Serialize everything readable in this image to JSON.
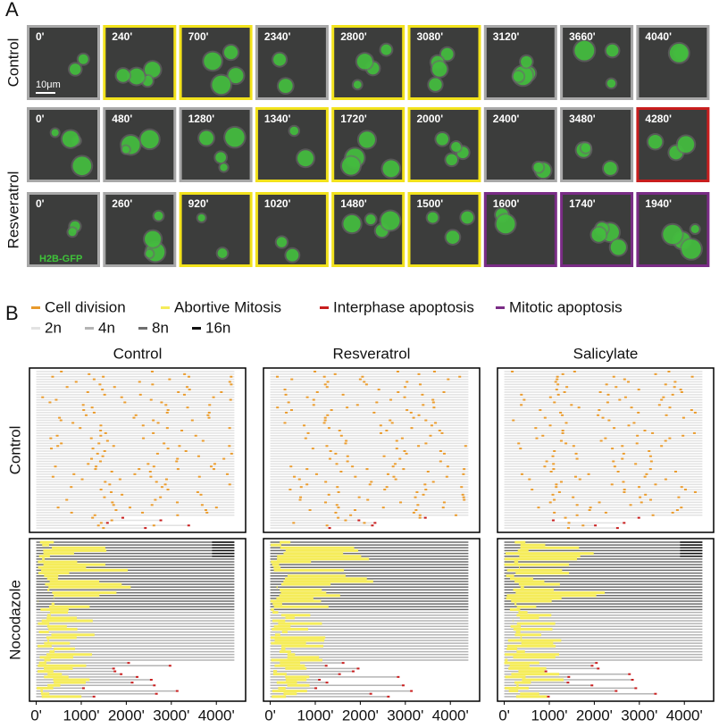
{
  "panel_a": {
    "label": "A",
    "row_labels": [
      "Control",
      "Resveratrol"
    ],
    "scale_bar": "10μm",
    "marker": "H2B-GFP",
    "rows": [
      [
        {
          "time": "0'",
          "border": "#a8a8a8"
        },
        {
          "time": "240'",
          "border": "#f2e21c"
        },
        {
          "time": "700'",
          "border": "#f2e21c"
        },
        {
          "time": "2340'",
          "border": "#a8a8a8"
        },
        {
          "time": "2800'",
          "border": "#f2e21c"
        },
        {
          "time": "3080'",
          "border": "#f2e21c"
        },
        {
          "time": "3120'",
          "border": "#a8a8a8"
        },
        {
          "time": "3660'",
          "border": "#a8a8a8"
        },
        {
          "time": "4040'",
          "border": "#a8a8a8"
        }
      ],
      [
        {
          "time": "0'",
          "border": "#a8a8a8"
        },
        {
          "time": "480'",
          "border": "#a8a8a8"
        },
        {
          "time": "1280'",
          "border": "#a8a8a8"
        },
        {
          "time": "1340'",
          "border": "#f2e21c"
        },
        {
          "time": "1720'",
          "border": "#f2e21c"
        },
        {
          "time": "2000'",
          "border": "#f2e21c"
        },
        {
          "time": "2400'",
          "border": "#a8a8a8"
        },
        {
          "time": "3480'",
          "border": "#a8a8a8"
        },
        {
          "time": "4280'",
          "border": "#c81e1e"
        }
      ],
      [
        {
          "time": "0'",
          "border": "#a8a8a8"
        },
        {
          "time": "260'",
          "border": "#a8a8a8"
        },
        {
          "time": "920'",
          "border": "#f2e21c"
        },
        {
          "time": "1020'",
          "border": "#f2e21c"
        },
        {
          "time": "1480'",
          "border": "#f2e21c"
        },
        {
          "time": "1500'",
          "border": "#f2e21c"
        },
        {
          "time": "1600'",
          "border": "#7a2c86"
        },
        {
          "time": "1740'",
          "border": "#7a2c86"
        },
        {
          "time": "1940'",
          "border": "#7a2c86"
        }
      ]
    ]
  },
  "panel_b": {
    "label": "B",
    "legend": [
      {
        "label": "Cell division",
        "color": "#e89a2c"
      },
      {
        "label": "Abortive Mitosis",
        "color": "#f5ec5a"
      },
      {
        "label": "Interphase apoptosis",
        "color": "#c81e1e"
      },
      {
        "label": "Mitotic apoptosis",
        "color": "#7a2c86"
      }
    ],
    "ploidy_legend": [
      {
        "label": "2n",
        "color": "#e2e2e2"
      },
      {
        "label": "4n",
        "color": "#b4b4b4"
      },
      {
        "label": "8n",
        "color": "#6e6e6e"
      },
      {
        "label": "16n",
        "color": "#111111"
      }
    ],
    "column_titles": [
      "Control",
      "Resveratrol",
      "Salicylate"
    ],
    "row_labels": [
      "Control",
      "Nocodazole"
    ],
    "xlim": [
      -150,
      4650
    ],
    "xticks": [
      {
        "value": 0,
        "label": "0'"
      },
      {
        "value": 1000,
        "label": "1000'"
      },
      {
        "value": 2000,
        "label": "2000'"
      },
      {
        "value": 3000,
        "label": "3000'"
      },
      {
        "value": 4000,
        "label": "4000'"
      }
    ]
  }
}
